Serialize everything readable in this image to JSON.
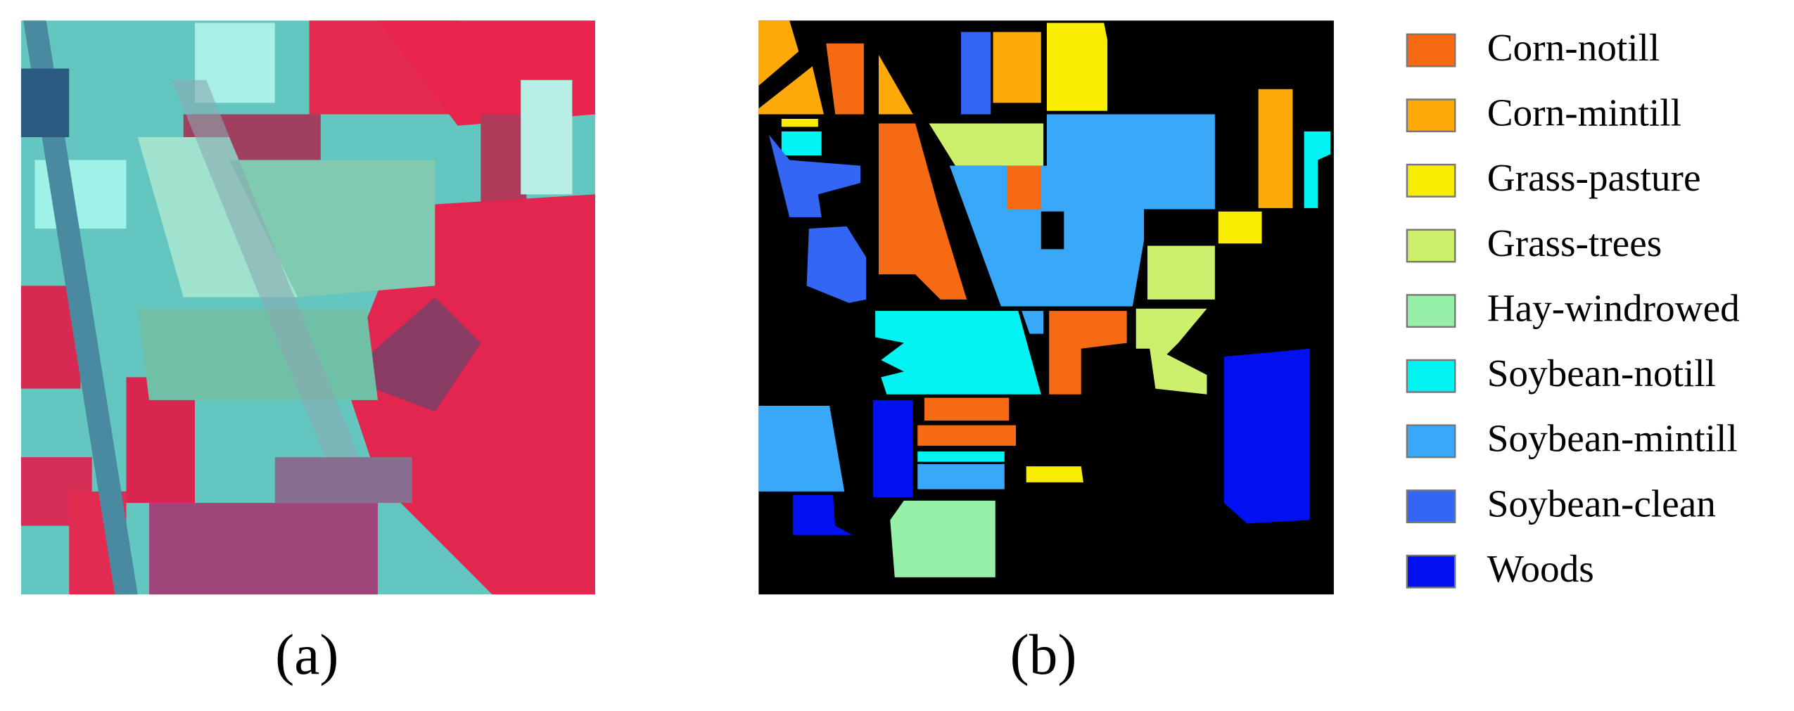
{
  "figure": {
    "panels": [
      {
        "caption": "(a)"
      },
      {
        "caption": "(b)"
      }
    ],
    "legend": [
      {
        "label": "Corn-notill",
        "color": "#f56a12"
      },
      {
        "label": "Corn-mintill",
        "color": "#fdaa08"
      },
      {
        "label": "Grass-pasture",
        "color": "#f8ec00"
      },
      {
        "label": "Grass-trees",
        "color": "#cdf06c"
      },
      {
        "label": "Hay-windrowed",
        "color": "#97f0a8"
      },
      {
        "label": "Soybean-notill",
        "color": "#00f5f2"
      },
      {
        "label": "Soybean-mintill",
        "color": "#3aa8f8"
      },
      {
        "label": "Soybean-clean",
        "color": "#3366f5"
      },
      {
        "label": "Woods",
        "color": "#0010f0"
      }
    ]
  }
}
